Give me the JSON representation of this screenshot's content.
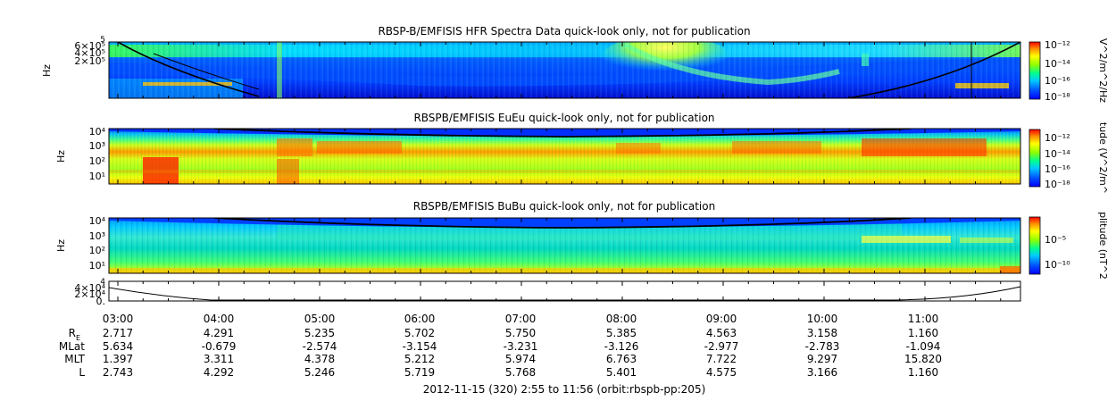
{
  "figure": {
    "footer": "2012-11-15 (320) 2:55 to 11:56 (orbit:rbspb-pp:205)"
  },
  "chart_data": [
    {
      "type": "heatmap",
      "title": "RBSP-B/EMFISIS  HFR Spectra Data quick-look only, not for publication",
      "ylabel": "Hz",
      "y_tick_labels": [
        "6×10⁵",
        "4×10⁵",
        "2×10⁵"
      ],
      "y_top_label": "5",
      "colorbar_label": "V^2/m^2/Hz",
      "colorbar_ticks": [
        "10⁻¹²",
        "10⁻¹⁴",
        "10⁻¹⁶",
        "10⁻¹⁸"
      ],
      "colorscale": [
        "#0000ff",
        "#0055ff",
        "#00c8ff",
        "#00ff88",
        "#9cff00",
        "#ffff00",
        "#ff9000",
        "#ff0000"
      ]
    },
    {
      "type": "heatmap",
      "title": "RBSPB/EMFISIS  EuEu quick-look only, not for publication",
      "ylabel": "Hz",
      "y_tick_labels": [
        "10⁴",
        "10³",
        "10²",
        "10¹"
      ],
      "colorbar_label": "tude (V^2/m^",
      "colorbar_ticks": [
        "10⁻¹²",
        "10⁻¹⁴",
        "10⁻¹⁶",
        "10⁻¹⁸"
      ]
    },
    {
      "type": "heatmap",
      "title": "RBSPB/EMFISIS  BuBu quick-look only, not for publication",
      "ylabel": "Hz",
      "y_tick_labels": [
        "10⁴",
        "10³",
        "10²",
        "10¹"
      ],
      "colorbar_label": "plitude (nT^2",
      "colorbar_ticks": [
        "10⁻⁵",
        "10⁻¹⁰"
      ]
    },
    {
      "type": "line",
      "y_tick_labels": [
        "4×10⁴",
        "2×10⁴",
        "0."
      ],
      "y_top_label": "4",
      "x_tick_labels": [
        "03:00",
        "04:00",
        "05:00",
        "06:00",
        "07:00",
        "08:00",
        "09:00",
        "10:00",
        "11:00"
      ]
    }
  ],
  "ephemeris": {
    "row_labels": [
      "R",
      "MLat",
      "MLT",
      "L"
    ],
    "r_subscript": "E",
    "values": [
      [
        "2.717",
        "4.291",
        "5.235",
        "5.702",
        "5.750",
        "5.385",
        "4.563",
        "3.158",
        "1.160"
      ],
      [
        "5.634",
        "-0.679",
        "-2.574",
        "-3.154",
        "-3.231",
        "-3.126",
        "-2.977",
        "-2.783",
        "-1.094"
      ],
      [
        "1.397",
        "3.311",
        "4.378",
        "5.212",
        "5.974",
        "6.763",
        "7.722",
        "9.297",
        "15.820"
      ],
      [
        "2.743",
        "4.292",
        "5.246",
        "5.719",
        "5.768",
        "5.401",
        "4.575",
        "3.166",
        "1.160"
      ]
    ]
  }
}
